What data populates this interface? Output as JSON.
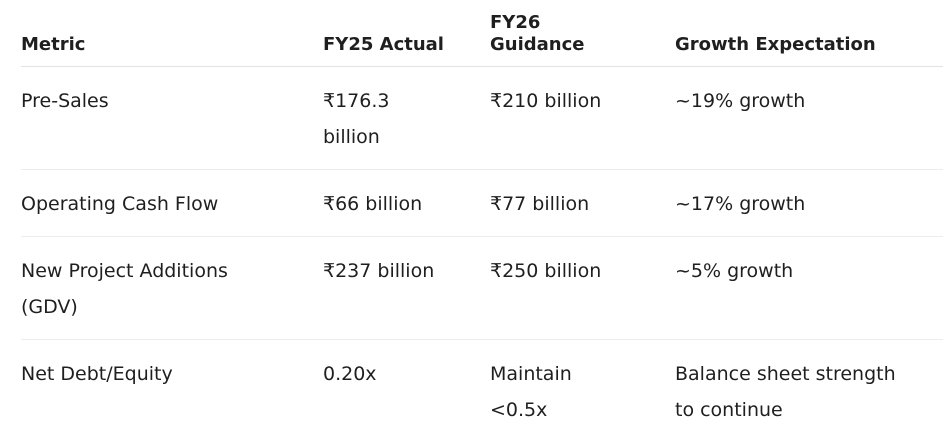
{
  "table": {
    "headers": [
      "Metric",
      "FY25 Actual",
      "FY26 Guidance",
      "Growth Expectation"
    ],
    "rows": [
      [
        "Pre-Sales",
        "₹176.3 billion",
        "₹210 billion",
        "~19% growth"
      ],
      [
        "Operating Cash Flow",
        "₹66 billion",
        "₹77 billion",
        "~17% growth"
      ],
      [
        "New Project Additions (GDV)",
        "₹237 billion",
        "₹250 billion",
        "~5% growth"
      ],
      [
        "Net Debt/Equity",
        "0.20x",
        "Maintain <0.5x",
        "Balance sheet strength to continue"
      ]
    ]
  }
}
